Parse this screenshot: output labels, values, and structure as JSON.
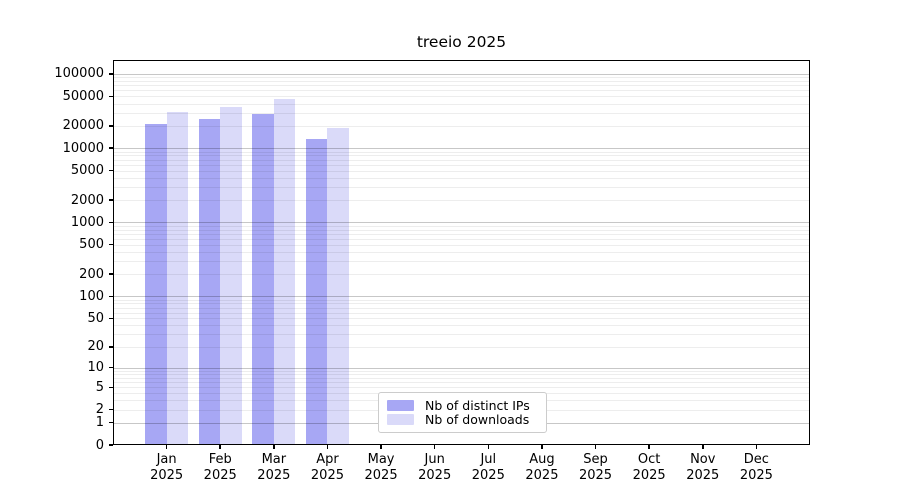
{
  "chart_data": {
    "type": "bar",
    "title": "treeio 2025",
    "categories": [
      "Jan",
      "Feb",
      "Mar",
      "Apr",
      "May",
      "Jun",
      "Jul",
      "Aug",
      "Sep",
      "Oct",
      "Nov",
      "Dec"
    ],
    "year": "2025",
    "series": [
      {
        "name": "Nb of distinct IPs",
        "color": "#a7a7f4",
        "values": [
          21000,
          24400,
          28800,
          13500,
          0,
          0,
          0,
          0,
          0,
          0,
          0,
          0
        ]
      },
      {
        "name": "Nb of downloads",
        "color": "#dadaf9",
        "values": [
          31000,
          35500,
          45500,
          18500,
          0,
          0,
          0,
          0,
          0,
          0,
          0,
          0
        ]
      }
    ],
    "y_axis": {
      "scale": "log10(value+1)",
      "tick_values": [
        100000,
        50000,
        20000,
        10000,
        5000,
        2000,
        1000,
        500,
        200,
        100,
        50,
        20,
        10,
        5,
        2,
        1,
        0
      ],
      "tick_labels": [
        "100000",
        "50000",
        "20000",
        "10000",
        "5000",
        "2000",
        "1000",
        "500",
        "200",
        "100",
        "50",
        "20",
        "10",
        "5",
        "2",
        "1",
        "0"
      ],
      "range_top": 155000
    },
    "x_axis": {
      "tick_labels": [
        "Jan 2025",
        "Feb 2025",
        "Mar 2025",
        "Apr 2025",
        "May 2025",
        "Jun 2025",
        "Jul 2025",
        "Aug 2025",
        "Sep 2025",
        "Oct 2025",
        "Nov 2025",
        "Dec 2025"
      ]
    },
    "grid": "on",
    "legend_position": "inside-bottom-center"
  },
  "colors": {
    "bar_distinct_ips": "#a7a7f4",
    "bar_downloads": "#dadaf9",
    "major_grid": "rgba(0,0,0,0.22)",
    "minor_grid": "rgba(0,0,0,0.07)",
    "axis": "#000000",
    "background": "#ffffff"
  }
}
